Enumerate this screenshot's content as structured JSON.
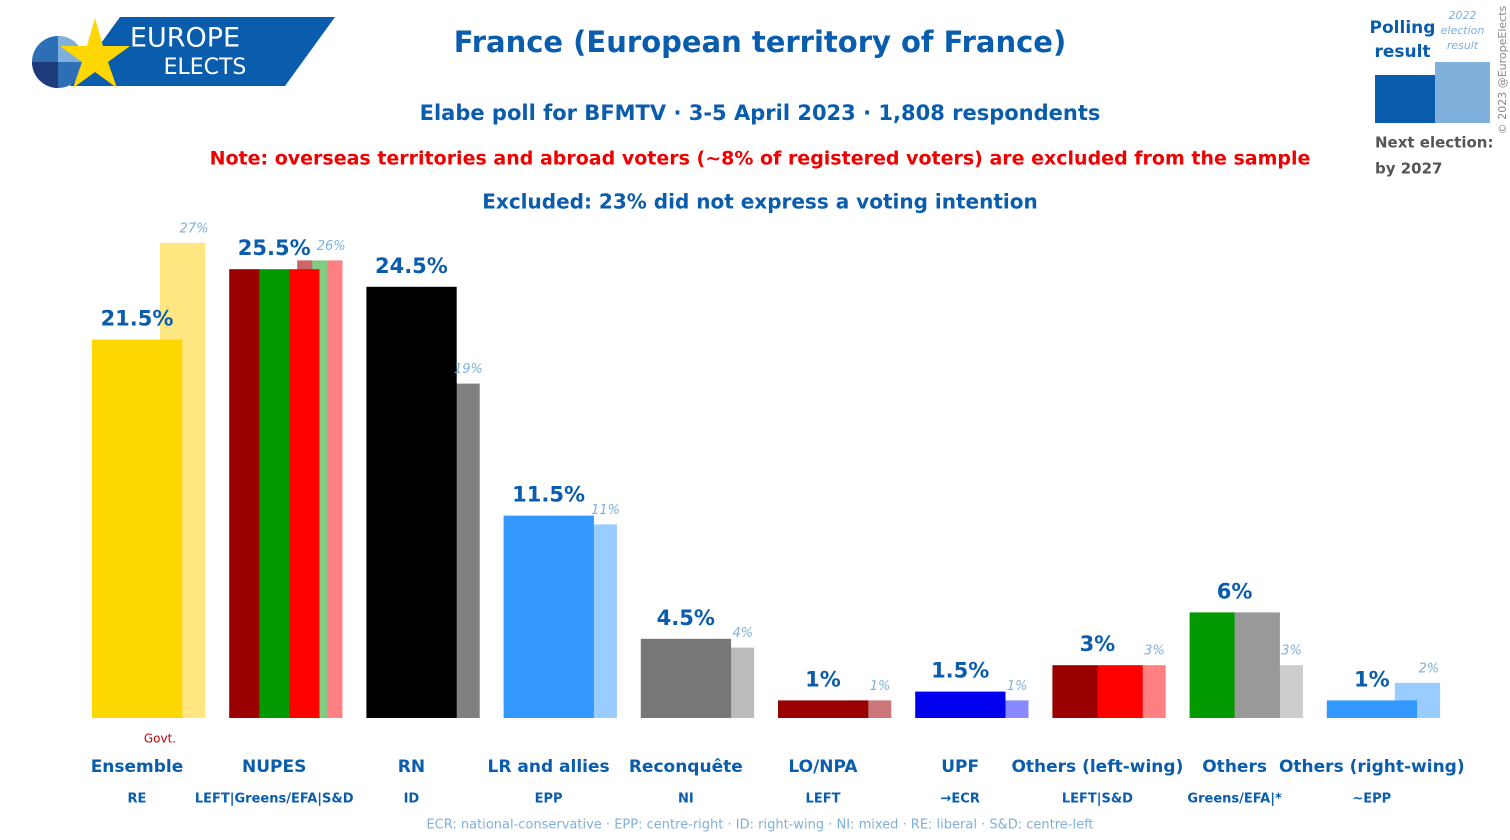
{
  "branding": {
    "line1": "EUROPE",
    "line2": "ELECTS",
    "copyright": "© 2023 @EuropeElects"
  },
  "chart_data": {
    "type": "bar",
    "title": "France (European territory of France)",
    "subtitle": "Elabe poll for BFMTV · 3-5 April 2023 · 1,808 respondents",
    "note": "Note: overseas territories and abroad voters (~8% of registered voters) are excluded from the sample",
    "excluded": "Excluded: 23% did not express a voting intention",
    "annotation": "Govt.",
    "next_election_label": "Next election:",
    "next_election": "by 2027",
    "footnote": "ECR: national-conservative · EPP: centre-right · ID: right-wing · NI: mixed · RE: liberal · S&D: centre-left",
    "categories": [
      "Ensemble",
      "NUPES",
      "RN",
      "LR and allies",
      "Reconquête",
      "LO/NPA",
      "UPF",
      "Others (left-wing)",
      "Others",
      "Others (right-wing)"
    ],
    "groups": [
      "RE",
      "LEFT|Greens/EFA|S&D",
      "ID",
      "EPP",
      "NI",
      "LEFT",
      "→ECR",
      "LEFT|S&D",
      "Greens/EFA|*",
      "~EPP"
    ],
    "series": [
      {
        "name": "Polling result",
        "color": "#0a5cad",
        "values": [
          21.5,
          25.5,
          24.5,
          11.5,
          4.5,
          1,
          1.5,
          3,
          6,
          1
        ],
        "value_labels": [
          "21.5%",
          "25.5%",
          "24.5%",
          "11.5%",
          "4.5%",
          "1%",
          "1.5%",
          "3%",
          "6%",
          "1%"
        ],
        "colors": [
          [
            "#ffd700"
          ],
          [
            "#990000",
            "#009900",
            "#ff0000"
          ],
          [
            "#000000"
          ],
          [
            "#3399ff"
          ],
          [
            "#777777"
          ],
          [
            "#990000"
          ],
          [
            "#0000ee"
          ],
          [
            "#990000",
            "#ff0000"
          ],
          [
            "#009900",
            "#999999"
          ],
          [
            "#3399ff"
          ]
        ]
      },
      {
        "name": "2022 election result",
        "color": "#7fb0dc",
        "values": [
          27,
          26,
          19,
          11,
          4,
          1,
          1,
          3,
          3,
          2
        ],
        "value_labels": [
          "27%",
          "26%",
          "19%",
          "11%",
          "4%",
          "1%",
          "1%",
          "3%",
          "3%",
          "2%"
        ],
        "colors": [
          [
            "#ffe680"
          ],
          [
            "#cc6666",
            "#80cc80",
            "#ff8080"
          ],
          [
            "#808080"
          ],
          [
            "#99ccff"
          ],
          [
            "#bbbbbb"
          ],
          [
            "#cc7777"
          ],
          [
            "#8888ff"
          ],
          [
            "#ff8080"
          ],
          [
            "#cccccc"
          ],
          [
            "#99ccff"
          ]
        ]
      }
    ]
  }
}
